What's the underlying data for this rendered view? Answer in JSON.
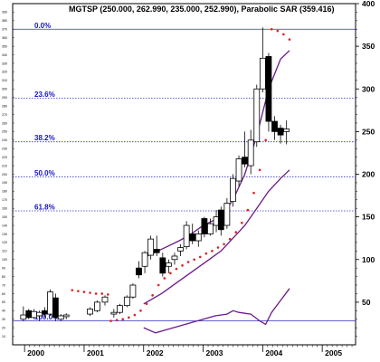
{
  "chart_data": {
    "type": "candlestick",
    "title": "MGTSP (250.000, 262.990, 235.000, 252.990), Parabolic SAR (359.416)",
    "xlabel": "",
    "ylabel": "",
    "xlim": [
      1999.9,
      2005.8
    ],
    "ylim": [
      0,
      400
    ],
    "x_ticks": [
      "2000",
      "2001",
      "2002",
      "2003",
      "2004",
      "2005"
    ],
    "y_ticks": [
      50,
      100,
      150,
      200,
      250,
      300,
      350,
      400
    ],
    "left_scale_ticks": [
      10,
      20,
      30,
      40,
      50,
      60,
      70,
      80,
      90,
      100,
      110,
      120,
      130,
      140,
      150,
      160,
      170,
      180,
      190,
      200,
      210,
      220,
      230,
      240,
      250,
      260,
      270,
      280,
      290,
      300,
      310,
      320,
      330,
      340,
      350,
      360,
      370,
      380,
      390
    ],
    "grid": false,
    "fibonacci_levels": [
      {
        "label": "0.0%",
        "value": 370
      },
      {
        "label": "23.6%",
        "value": 289
      },
      {
        "label": "38.2%",
        "value": 238
      },
      {
        "label": "50.0%",
        "value": 197
      },
      {
        "label": "61.8%",
        "value": 157
      },
      {
        "label": "100.0%",
        "value": 28
      }
    ],
    "candles": [
      {
        "x": 1999.98,
        "o": 30,
        "h": 45,
        "l": 28,
        "c": 35
      },
      {
        "x": 2000.07,
        "o": 40,
        "h": 42,
        "l": 30,
        "c": 32
      },
      {
        "x": 2000.16,
        "o": 32,
        "h": 42,
        "l": 30,
        "c": 39
      },
      {
        "x": 2000.25,
        "o": 34,
        "h": 40,
        "l": 28,
        "c": 38
      },
      {
        "x": 2000.34,
        "o": 40,
        "h": 44,
        "l": 32,
        "c": 36
      },
      {
        "x": 2000.43,
        "o": 36,
        "h": 65,
        "l": 34,
        "c": 62
      },
      {
        "x": 2000.52,
        "o": 55,
        "h": 60,
        "l": 28,
        "c": 32
      },
      {
        "x": 2000.61,
        "o": 30,
        "h": 36,
        "l": 28,
        "c": 34
      },
      {
        "x": 2000.7,
        "o": 33,
        "h": 37,
        "l": 30,
        "c": 35
      },
      {
        "x": 2001.1,
        "o": 36,
        "h": 44,
        "l": 34,
        "c": 42
      },
      {
        "x": 2001.22,
        "o": 40,
        "h": 52,
        "l": 38,
        "c": 50
      },
      {
        "x": 2001.35,
        "o": 50,
        "h": 58,
        "l": 46,
        "c": 56
      },
      {
        "x": 2001.5,
        "o": 36,
        "h": 42,
        "l": 32,
        "c": 38
      },
      {
        "x": 2001.6,
        "o": 38,
        "h": 48,
        "l": 36,
        "c": 46
      },
      {
        "x": 2001.72,
        "o": 46,
        "h": 58,
        "l": 44,
        "c": 56
      },
      {
        "x": 2001.82,
        "o": 56,
        "h": 72,
        "l": 54,
        "c": 70
      },
      {
        "x": 2001.92,
        "o": 90,
        "h": 98,
        "l": 78,
        "c": 82
      },
      {
        "x": 2002.02,
        "o": 92,
        "h": 110,
        "l": 84,
        "c": 108
      },
      {
        "x": 2002.12,
        "o": 105,
        "h": 128,
        "l": 100,
        "c": 124
      },
      {
        "x": 2002.22,
        "o": 112,
        "h": 128,
        "l": 104,
        "c": 108
      },
      {
        "x": 2002.32,
        "o": 102,
        "h": 108,
        "l": 80,
        "c": 84
      },
      {
        "x": 2002.42,
        "o": 92,
        "h": 100,
        "l": 84,
        "c": 96
      },
      {
        "x": 2002.52,
        "o": 100,
        "h": 108,
        "l": 94,
        "c": 104
      },
      {
        "x": 2002.62,
        "o": 110,
        "h": 118,
        "l": 104,
        "c": 114
      },
      {
        "x": 2002.72,
        "o": 115,
        "h": 145,
        "l": 112,
        "c": 140
      },
      {
        "x": 2002.82,
        "o": 130,
        "h": 142,
        "l": 118,
        "c": 122
      },
      {
        "x": 2002.92,
        "o": 122,
        "h": 134,
        "l": 115,
        "c": 130
      },
      {
        "x": 2003.02,
        "o": 148,
        "h": 150,
        "l": 126,
        "c": 130
      },
      {
        "x": 2003.12,
        "o": 130,
        "h": 148,
        "l": 128,
        "c": 142
      },
      {
        "x": 2003.22,
        "o": 140,
        "h": 158,
        "l": 132,
        "c": 150
      },
      {
        "x": 2003.3,
        "o": 158,
        "h": 162,
        "l": 128,
        "c": 135
      },
      {
        "x": 2003.4,
        "o": 140,
        "h": 172,
        "l": 136,
        "c": 166
      },
      {
        "x": 2003.5,
        "o": 168,
        "h": 200,
        "l": 162,
        "c": 195
      },
      {
        "x": 2003.6,
        "o": 192,
        "h": 222,
        "l": 186,
        "c": 218
      },
      {
        "x": 2003.7,
        "o": 220,
        "h": 250,
        "l": 208,
        "c": 212
      },
      {
        "x": 2003.8,
        "o": 210,
        "h": 252,
        "l": 200,
        "c": 240
      },
      {
        "x": 2003.9,
        "o": 238,
        "h": 305,
        "l": 232,
        "c": 300
      },
      {
        "x": 2004.0,
        "o": 300,
        "h": 372,
        "l": 296,
        "c": 336
      },
      {
        "x": 2004.1,
        "o": 338,
        "h": 342,
        "l": 250,
        "c": 262
      },
      {
        "x": 2004.2,
        "o": 262,
        "h": 268,
        "l": 240,
        "c": 250
      },
      {
        "x": 2004.3,
        "o": 254,
        "h": 258,
        "l": 236,
        "c": 246
      },
      {
        "x": 2004.4,
        "o": 250,
        "h": 262.99,
        "l": 235,
        "c": 252.99
      }
    ],
    "series": [
      {
        "name": "Parabolic SAR",
        "style": "dots",
        "color": "#e02020",
        "points": [
          [
            2000.8,
            64
          ],
          [
            2000.9,
            63
          ],
          [
            2001.0,
            62
          ],
          [
            2001.1,
            61
          ],
          [
            2001.2,
            60
          ],
          [
            2001.3,
            60
          ],
          [
            2001.4,
            59
          ],
          [
            2001.45,
            28
          ],
          [
            2001.55,
            29
          ],
          [
            2001.65,
            30
          ],
          [
            2001.75,
            32
          ],
          [
            2001.85,
            35
          ],
          [
            2001.95,
            40
          ],
          [
            2002.05,
            48
          ],
          [
            2002.15,
            58
          ],
          [
            2002.25,
            70
          ],
          [
            2002.35,
            78
          ],
          [
            2002.45,
            84
          ],
          [
            2002.55,
            89
          ],
          [
            2002.65,
            93
          ],
          [
            2002.75,
            97
          ],
          [
            2002.85,
            100
          ],
          [
            2002.95,
            103
          ],
          [
            2003.05,
            107
          ],
          [
            2003.15,
            110
          ],
          [
            2003.25,
            114
          ],
          [
            2003.35,
            118
          ],
          [
            2003.45,
            124
          ],
          [
            2003.55,
            132
          ],
          [
            2003.65,
            143
          ],
          [
            2003.75,
            158
          ],
          [
            2003.85,
            178
          ],
          [
            2003.95,
            205
          ],
          [
            2004.05,
            240
          ],
          [
            2004.15,
            370
          ],
          [
            2004.25,
            368
          ],
          [
            2004.35,
            364
          ],
          [
            2004.45,
            358
          ]
        ]
      },
      {
        "name": "",
        "style": "line",
        "color": "#6a1a8a",
        "points": [
          [
            2002.0,
            48
          ],
          [
            2002.3,
            60
          ],
          [
            2002.6,
            75
          ],
          [
            2002.9,
            90
          ],
          [
            2003.1,
            100
          ],
          [
            2003.3,
            110
          ],
          [
            2003.5,
            125
          ],
          [
            2003.7,
            140
          ],
          [
            2003.9,
            160
          ],
          [
            2004.1,
            180
          ],
          [
            2004.3,
            195
          ],
          [
            2004.45,
            205
          ]
        ]
      },
      {
        "name": "",
        "style": "line",
        "color": "#6a1a8a",
        "points": [
          [
            2002.0,
            102
          ],
          [
            2002.3,
            112
          ],
          [
            2002.6,
            122
          ],
          [
            2002.8,
            130
          ],
          [
            2003.0,
            140
          ],
          [
            2003.3,
            150
          ],
          [
            2003.5,
            170
          ],
          [
            2003.7,
            200
          ],
          [
            2003.9,
            245
          ],
          [
            2004.1,
            300
          ],
          [
            2004.3,
            335
          ],
          [
            2004.45,
            345
          ]
        ]
      },
      {
        "name": "",
        "style": "line",
        "color": "#6a1a8a",
        "points": [
          [
            2002.0,
            20
          ],
          [
            2002.2,
            14
          ],
          [
            2002.4,
            18
          ],
          [
            2002.6,
            22
          ],
          [
            2002.8,
            26
          ],
          [
            2003.0,
            30
          ],
          [
            2003.2,
            34
          ],
          [
            2003.4,
            36
          ],
          [
            2003.5,
            40
          ],
          [
            2003.6,
            38
          ],
          [
            2003.8,
            36
          ],
          [
            2003.95,
            28
          ],
          [
            2004.05,
            24
          ],
          [
            2004.15,
            38
          ],
          [
            2004.3,
            52
          ],
          [
            2004.45,
            66
          ]
        ]
      }
    ]
  }
}
